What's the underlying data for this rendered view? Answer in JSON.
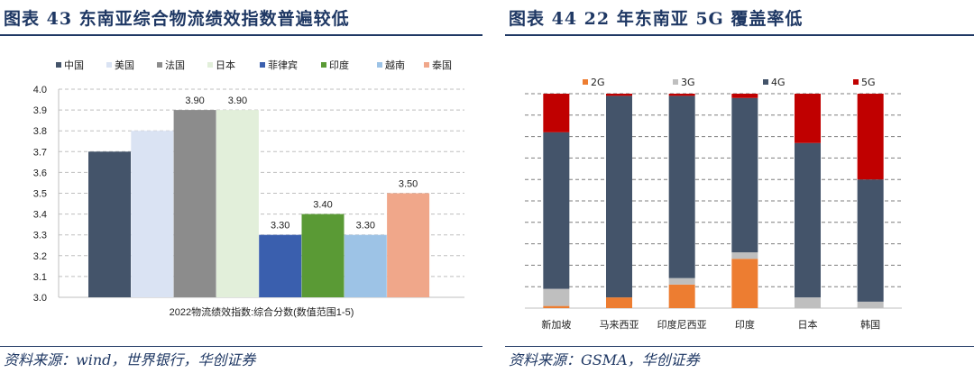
{
  "left": {
    "figure_title": "图表 43   东南亚综合物流绩效指数普遍较低",
    "source": "资料来源：wind，世界银行，华创证券"
  },
  "right": {
    "figure_title": "图表 44   22 年东南亚 5G 覆盖率低",
    "source": "资料来源：GSMA，华创证券"
  },
  "chart_data": [
    {
      "type": "bar",
      "title": "",
      "xlabel": "2022物流绩效指数:综合分数(数值范围1-5)",
      "ylabel": "",
      "ylim": [
        3.0,
        4.0
      ],
      "yticks": [
        "3.0",
        "3.1",
        "3.2",
        "3.3",
        "3.4",
        "3.5",
        "3.6",
        "3.7",
        "3.8",
        "3.9",
        "4.0"
      ],
      "legend_position": "top",
      "grid": true,
      "categories": [
        "中国",
        "美国",
        "法国",
        "日本",
        "菲律宾",
        "印度",
        "越南",
        "泰国"
      ],
      "values": [
        3.7,
        3.8,
        3.9,
        3.9,
        3.3,
        3.4,
        3.3,
        3.5
      ],
      "data_labels": [
        "",
        "",
        "3.90",
        "3.90",
        "3.30",
        "3.40",
        "3.30",
        "3.50"
      ],
      "colors": [
        "#44546a",
        "#dae3f3",
        "#8c8c8c",
        "#e2efda",
        "#3a5fae",
        "#5a9a35",
        "#9dc3e6",
        "#f0a78a"
      ]
    },
    {
      "type": "bar",
      "stacked": true,
      "normalized": true,
      "title": "",
      "xlabel": "",
      "ylabel": "",
      "ylim": [
        0,
        100
      ],
      "legend_position": "top",
      "grid": true,
      "categories": [
        "新加坡",
        "马来西亚",
        "印度尼西亚",
        "印度",
        "日本",
        "韩国"
      ],
      "series": [
        {
          "name": "2G",
          "color": "#ed7d31",
          "values": [
            1,
            5,
            11,
            23,
            0,
            0
          ]
        },
        {
          "name": "3G",
          "color": "#bfbfbf",
          "values": [
            8,
            0,
            3,
            3,
            5,
            3
          ]
        },
        {
          "name": "4G",
          "color": "#44546a",
          "values": [
            73,
            94,
            85,
            72,
            72,
            57
          ]
        },
        {
          "name": "5G",
          "color": "#c00000",
          "values": [
            18,
            1,
            1,
            2,
            23,
            40
          ]
        }
      ]
    }
  ]
}
